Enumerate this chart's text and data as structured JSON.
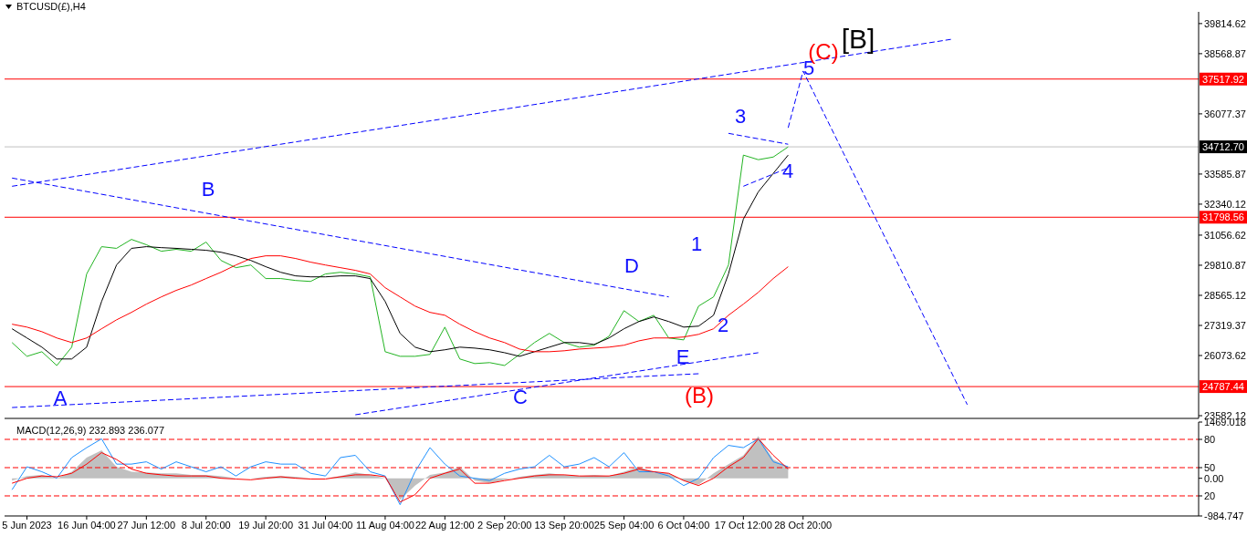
{
  "chart_data": [
    {
      "type": "line",
      "title": "BTCUSD(£),H4",
      "categories": [
        null,
        "5 Jun 2023",
        null,
        null,
        null,
        "16 Jun 04:00",
        null,
        null,
        null,
        "27 Jun 12:00",
        null,
        null,
        null,
        "8 Jul 20:00",
        null,
        null,
        null,
        "19 Jul 20:00",
        null,
        null,
        null,
        "31 Jul 04:00",
        null,
        null,
        null,
        "11 Aug 04:00",
        null,
        null,
        null,
        "22 Aug 12:00",
        null,
        null,
        null,
        "2 Sep 20:00",
        null,
        null,
        null,
        "13 Sep 20:00",
        null,
        null,
        null,
        "25 Sep 04:00",
        null,
        null,
        null,
        "6 Oct 04:00",
        null,
        null,
        null,
        "17 Oct 12:00",
        null,
        null,
        null,
        "28 Oct 20:00",
        null,
        null,
        null,
        null,
        null,
        null,
        null,
        null,
        null,
        null,
        null,
        null,
        null,
        null,
        null,
        null,
        null,
        null,
        null,
        null,
        null,
        null,
        null,
        null,
        null,
        null
      ],
      "series": [
        {
          "color": "#22b422",
          "values": [
            26610,
            26040,
            26230,
            25660,
            26420,
            29450,
            30580,
            30510,
            30880,
            30660,
            30390,
            30470,
            30390,
            30770,
            30010,
            29710,
            29820,
            29260,
            29260,
            29180,
            29140,
            29450,
            29520,
            29450,
            29330,
            26230,
            26040,
            26040,
            26120,
            27250,
            25930,
            25740,
            25780,
            25660,
            26120,
            26610,
            26990,
            26610,
            26420,
            26500,
            26870,
            27930,
            27480,
            27740,
            26800,
            26720,
            28120,
            28500,
            29820,
            34370,
            34180,
            34290,
            34710,
            null,
            null,
            null,
            null,
            null,
            null,
            null,
            null,
            null,
            null,
            null,
            null,
            null,
            null,
            null,
            null,
            null,
            null,
            null,
            null,
            null,
            null,
            null,
            null,
            null,
            null,
            null
          ]
        },
        {
          "color": "#000000",
          "values": [
            27180,
            26800,
            26420,
            25930,
            25930,
            26420,
            28310,
            29820,
            30510,
            30580,
            30540,
            30510,
            30470,
            30430,
            30350,
            30200,
            30010,
            29750,
            29520,
            29370,
            29330,
            29330,
            29370,
            29370,
            29260,
            28310,
            26990,
            26420,
            26230,
            26310,
            26420,
            26380,
            26310,
            26190,
            26040,
            26230,
            26420,
            26610,
            26610,
            26530,
            26800,
            27180,
            27480,
            27670,
            27480,
            27250,
            27290,
            27740,
            29450,
            31720,
            32850,
            33610,
            34370,
            null,
            null,
            null,
            null,
            null,
            null,
            null,
            null,
            null,
            null,
            null,
            null,
            null,
            null,
            null,
            null,
            null,
            null,
            null,
            null,
            null,
            null,
            null,
            null,
            null,
            null,
            null
          ]
        },
        {
          "color": "#ff0000",
          "values": [
            27370,
            27250,
            27060,
            26800,
            26610,
            26800,
            27180,
            27550,
            27860,
            28200,
            28500,
            28770,
            28990,
            29260,
            29520,
            29820,
            30090,
            30200,
            30200,
            30090,
            29940,
            29820,
            29710,
            29600,
            29450,
            28880,
            28500,
            28120,
            27860,
            27740,
            27370,
            27060,
            26800,
            26610,
            26340,
            26230,
            26230,
            26270,
            26340,
            26380,
            26420,
            26500,
            26680,
            26800,
            26800,
            26840,
            26950,
            27180,
            27740,
            28200,
            28690,
            29260,
            29750,
            null,
            null,
            null,
            null,
            null,
            null,
            null,
            null,
            null,
            null,
            null,
            null,
            null,
            null,
            null,
            null,
            null,
            null,
            null,
            null,
            null,
            null,
            null,
            null,
            null,
            null,
            null
          ]
        },
        {
          "color": "#0000ff",
          "line_style": "dashed",
          "values": [
            33080,
            null,
            null,
            null,
            null,
            null,
            null,
            null,
            null,
            null,
            null,
            null,
            null,
            null,
            null,
            null,
            null,
            null,
            null,
            null,
            null,
            null,
            null,
            null,
            null,
            null,
            null,
            null,
            null,
            null,
            null,
            null,
            null,
            null,
            null,
            null,
            null,
            null,
            null,
            null,
            null,
            null,
            null,
            null,
            null,
            null,
            null,
            null,
            null,
            null,
            null,
            null,
            null,
            null,
            null,
            null,
            null,
            null,
            null,
            null,
            null,
            null,
            null,
            39170,
            null,
            null,
            null,
            null,
            null,
            null,
            null,
            null,
            null,
            null,
            null,
            null,
            null,
            null,
            null,
            null
          ]
        },
        {
          "color": "#0000ff",
          "line_style": "dashed",
          "values": [
            33420,
            null,
            null,
            null,
            null,
            null,
            null,
            null,
            null,
            null,
            null,
            null,
            null,
            null,
            null,
            null,
            null,
            null,
            null,
            null,
            null,
            null,
            null,
            null,
            null,
            null,
            null,
            null,
            null,
            null,
            null,
            null,
            null,
            null,
            null,
            null,
            null,
            null,
            null,
            null,
            null,
            null,
            null,
            null,
            28500,
            null,
            null,
            null,
            null,
            null,
            null,
            null,
            null,
            null,
            null,
            null,
            null,
            null,
            null,
            null,
            null,
            null,
            null,
            null,
            null,
            null,
            null,
            null,
            null,
            null,
            null,
            null,
            null,
            null,
            null,
            null,
            null,
            null,
            null,
            null
          ]
        },
        {
          "color": "#0000ff",
          "line_style": "dashed",
          "values": [
            23920,
            null,
            null,
            null,
            null,
            null,
            null,
            null,
            null,
            null,
            null,
            null,
            null,
            null,
            null,
            null,
            null,
            null,
            null,
            null,
            null,
            null,
            null,
            null,
            null,
            null,
            null,
            null,
            null,
            null,
            null,
            null,
            null,
            null,
            null,
            null,
            null,
            null,
            null,
            null,
            null,
            null,
            null,
            null,
            null,
            null,
            25320,
            null,
            null,
            null,
            null,
            null,
            null,
            null,
            null,
            null,
            null,
            null,
            null,
            null,
            null,
            null,
            null,
            null,
            null,
            null,
            null,
            null,
            null,
            null,
            null,
            null,
            null,
            null,
            null,
            null,
            null,
            null,
            null,
            null
          ]
        },
        {
          "color": "#0000ff",
          "line_style": "dashed",
          "values": [
            null,
            null,
            null,
            null,
            null,
            null,
            null,
            null,
            null,
            null,
            null,
            null,
            null,
            null,
            null,
            null,
            null,
            null,
            null,
            null,
            null,
            null,
            null,
            23620,
            null,
            null,
            null,
            null,
            null,
            null,
            null,
            null,
            null,
            null,
            null,
            null,
            null,
            null,
            null,
            null,
            null,
            null,
            null,
            null,
            null,
            null,
            null,
            null,
            null,
            null,
            26190,
            null,
            null,
            null,
            null,
            null,
            null,
            null,
            null,
            null,
            null,
            null,
            null,
            null,
            null,
            null,
            null,
            null,
            null,
            null,
            null,
            null,
            null,
            null,
            null,
            null,
            null,
            null,
            null,
            null
          ]
        },
        {
          "color": "#0000ff",
          "line_style": "dashed",
          "values": [
            null,
            null,
            null,
            null,
            null,
            null,
            null,
            null,
            null,
            null,
            null,
            null,
            null,
            null,
            null,
            null,
            null,
            null,
            null,
            null,
            null,
            null,
            null,
            null,
            null,
            null,
            null,
            null,
            null,
            null,
            null,
            null,
            null,
            null,
            null,
            null,
            null,
            null,
            null,
            null,
            null,
            null,
            null,
            null,
            null,
            null,
            null,
            null,
            35270,
            null,
            null,
            null,
            34820,
            null,
            null,
            null,
            null,
            null,
            null,
            null,
            null,
            null,
            null,
            null,
            null,
            null,
            null,
            null,
            null,
            null,
            null,
            null,
            null,
            null,
            null,
            null,
            null,
            null,
            null,
            null
          ]
        },
        {
          "color": "#0000ff",
          "line_style": "dashed",
          "values": [
            null,
            null,
            null,
            null,
            null,
            null,
            null,
            null,
            null,
            null,
            null,
            null,
            null,
            null,
            null,
            null,
            null,
            null,
            null,
            null,
            null,
            null,
            null,
            null,
            null,
            null,
            null,
            null,
            null,
            null,
            null,
            null,
            null,
            null,
            null,
            null,
            null,
            null,
            null,
            null,
            null,
            null,
            null,
            null,
            null,
            null,
            null,
            null,
            null,
            33080,
            null,
            null,
            33840,
            null,
            null,
            null,
            null,
            null,
            null,
            null,
            null,
            null,
            null,
            null,
            null,
            null,
            null,
            null,
            null,
            null,
            null,
            null,
            null,
            null,
            null,
            null,
            null,
            null,
            null,
            null
          ]
        },
        {
          "color": "#0000ff",
          "line_style": "dashed",
          "values": [
            null,
            null,
            null,
            null,
            null,
            null,
            null,
            null,
            null,
            null,
            null,
            null,
            null,
            null,
            null,
            null,
            null,
            null,
            null,
            null,
            null,
            null,
            null,
            null,
            null,
            null,
            null,
            null,
            null,
            null,
            null,
            null,
            null,
            null,
            null,
            null,
            null,
            null,
            null,
            null,
            null,
            null,
            null,
            null,
            null,
            null,
            null,
            null,
            null,
            null,
            null,
            null,
            35500,
            37850,
            null,
            null,
            null,
            null,
            null,
            null,
            null,
            null,
            null,
            null,
            24040,
            null,
            null,
            null,
            null,
            null,
            null,
            null,
            null,
            null,
            null,
            null,
            null,
            null,
            null,
            null
          ]
        }
      ],
      "ylim": [
        23470,
        40300
      ],
      "yticks": [
        39814.62,
        38568.87,
        36077.37,
        33585.87,
        32340.12,
        31056.62,
        29810.87,
        28565.12,
        27319.37,
        26073.62,
        23582.12
      ],
      "ref_lines": [
        {
          "axis": "y",
          "value": 37517.92,
          "label": "37517.92",
          "color": "#ff0000"
        },
        {
          "axis": "y",
          "value": 34712.7,
          "label": "34712.70",
          "color": "#c0c0c0"
        },
        {
          "axis": "y",
          "value": 31798.56,
          "label": "31798.56",
          "color": "#ff0000"
        },
        {
          "axis": "y",
          "value": 24787.44,
          "label": "24787.44",
          "color": "#ff0000"
        }
      ],
      "annotations": [
        "A",
        "B",
        "C",
        "D",
        "E",
        "(B)",
        "1",
        "2",
        "3",
        "4",
        "5",
        "(C)",
        "[B]"
      ],
      "marker": "none",
      "tick_labels": "y"
    },
    {
      "type": "line",
      "title": "MACD(12,26,9) 232.893 236.077",
      "categories": [
        null,
        "5 Jun 2023",
        null,
        null,
        null,
        "16 Jun 04:00",
        null,
        null,
        null,
        "27 Jun 12:00",
        null,
        null,
        null,
        "8 Jul 20:00",
        null,
        null,
        null,
        "19 Jul 20:00",
        null,
        null,
        null,
        "31 Jul 04:00",
        null,
        null,
        null,
        "11 Aug 04:00",
        null,
        null,
        null,
        "22 Aug 12:00",
        null,
        null,
        null,
        "2 Sep 20:00",
        null,
        null,
        null,
        "13 Sep 20:00",
        null,
        null,
        null,
        "25 Sep 04:00",
        null,
        null,
        null,
        "6 Oct 04:00",
        null,
        null,
        null,
        "17 Oct 12:00",
        null,
        null,
        null,
        "28 Oct 20:00",
        null,
        null,
        null,
        null,
        null,
        null,
        null,
        null,
        null,
        null,
        null,
        null,
        null,
        null,
        null,
        null,
        null,
        null,
        null,
        null,
        null,
        null,
        null,
        null,
        null,
        null
      ],
      "series": [
        {
          "type": "area",
          "color": "#c0c0c0",
          "values": [
            -60,
            60,
            90,
            0,
            170,
            540,
            730,
            300,
            170,
            150,
            130,
            130,
            90,
            90,
            60,
            0,
            0,
            40,
            60,
            40,
            0,
            0,
            60,
            150,
            90,
            0,
            -560,
            -190,
            90,
            150,
            300,
            -60,
            -130,
            -40,
            40,
            90,
            130,
            90,
            60,
            90,
            60,
            170,
            300,
            150,
            130,
            -60,
            -170,
            130,
            370,
            600,
            1100,
            490,
            300,
            null,
            null,
            null,
            null,
            null,
            null,
            null,
            null,
            null,
            null,
            null,
            null,
            null,
            null,
            null,
            null,
            null,
            null,
            null,
            null,
            null,
            null,
            null,
            null,
            null,
            null,
            null
          ]
        },
        {
          "color": "#1e90ff",
          "values": [
            -300,
            300,
            170,
            0,
            540,
            800,
            1030,
            370,
            370,
            430,
            240,
            430,
            300,
            170,
            300,
            60,
            300,
            430,
            370,
            370,
            130,
            60,
            540,
            600,
            170,
            60,
            -690,
            170,
            800,
            370,
            60,
            0,
            -60,
            130,
            240,
            300,
            600,
            300,
            370,
            540,
            300,
            670,
            170,
            170,
            60,
            -190,
            0,
            540,
            860,
            800,
            1030,
            430,
            300,
            null,
            null,
            null,
            null,
            null,
            null,
            null,
            null,
            null,
            null,
            null,
            null,
            null,
            null,
            null,
            null,
            null,
            null,
            null,
            null,
            null,
            null,
            null,
            null,
            null,
            null,
            null
          ]
        },
        {
          "color": "#ff0000",
          "values": [
            -130,
            0,
            60,
            40,
            130,
            370,
            670,
            490,
            240,
            130,
            90,
            60,
            60,
            60,
            0,
            -20,
            -40,
            0,
            40,
            0,
            -20,
            -20,
            40,
            90,
            90,
            40,
            -620,
            -430,
            0,
            130,
            240,
            -130,
            -130,
            -60,
            0,
            60,
            90,
            90,
            60,
            60,
            60,
            130,
            240,
            170,
            130,
            -60,
            -190,
            0,
            300,
            540,
            1030,
            600,
            240,
            null,
            null,
            null,
            null,
            null,
            null,
            null,
            null,
            null,
            null,
            null,
            null,
            null,
            null,
            null,
            null,
            null,
            null,
            null,
            null,
            null,
            null,
            null,
            null,
            null,
            null,
            null
          ]
        }
      ],
      "ylim": [
        -984.747,
        1469.018
      ],
      "yticks": [
        1469.018,
        {
          "value": 0,
          "label": "0.00"
        },
        -984.747
      ],
      "y2lim": [
        -1.3,
        98.4
      ],
      "y2ticks": [
        80,
        50,
        20
      ],
      "ref_lines": [
        {
          "axis": "y2",
          "value": 80,
          "color": "#ff0000",
          "line_style": "dashed"
        },
        {
          "axis": "y2",
          "value": 50,
          "color": "#ff0000",
          "line_style": "dashed"
        },
        {
          "axis": "y2",
          "value": 20,
          "color": "#ff0000",
          "line_style": "dashed"
        }
      ],
      "marker": "none"
    }
  ]
}
